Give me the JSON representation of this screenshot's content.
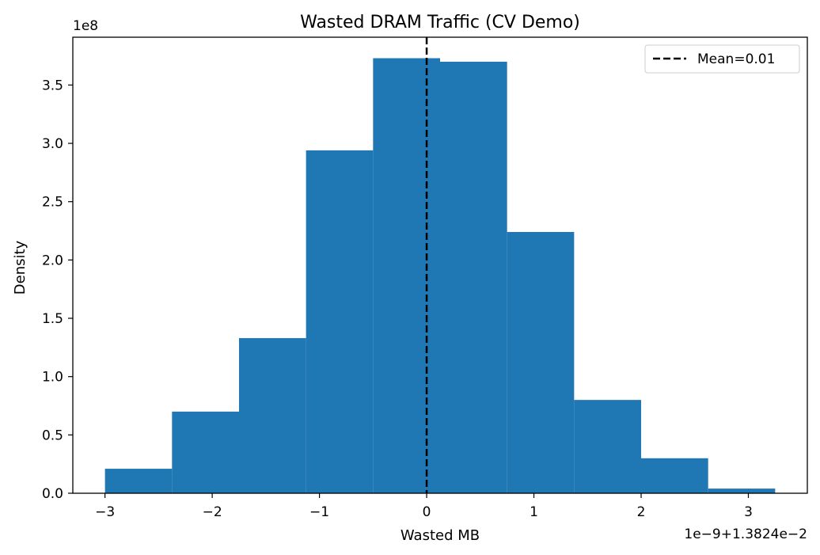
{
  "chart_data": {
    "type": "bar",
    "title": "Wasted DRAM Traffic (CV Demo)",
    "xlabel": "Wasted MB",
    "ylabel": "Density",
    "y_multiplier_label": "1e8",
    "x_offset_label": "1e−9+1.3824e−2",
    "xlim": [
      -3.3,
      3.55
    ],
    "ylim": [
      0,
      3.91
    ],
    "bins": [
      {
        "x0": -3.0,
        "x1": -2.375,
        "value": 0.21
      },
      {
        "x0": -2.375,
        "x1": -1.75,
        "value": 0.7
      },
      {
        "x0": -1.75,
        "x1": -1.125,
        "value": 1.33
      },
      {
        "x0": -1.125,
        "x1": -0.5,
        "value": 2.94
      },
      {
        "x0": -0.5,
        "x1": 0.125,
        "value": 3.73
      },
      {
        "x0": 0.125,
        "x1": 0.75,
        "value": 3.7
      },
      {
        "x0": 0.75,
        "x1": 1.375,
        "value": 2.24
      },
      {
        "x0": 1.375,
        "x1": 2.0,
        "value": 0.8
      },
      {
        "x0": 2.0,
        "x1": 2.625,
        "value": 0.3
      },
      {
        "x0": 2.625,
        "x1": 3.25,
        "value": 0.04
      }
    ],
    "bar_color": "#1f77b4",
    "mean_line": {
      "x": 0.0,
      "label": "Mean=0.01",
      "color": "#000000",
      "style": "dashed"
    },
    "x_ticks": [
      {
        "value": -3,
        "label": "−3"
      },
      {
        "value": -2,
        "label": "−2"
      },
      {
        "value": -1,
        "label": "−1"
      },
      {
        "value": 0,
        "label": "0"
      },
      {
        "value": 1,
        "label": "1"
      },
      {
        "value": 2,
        "label": "2"
      },
      {
        "value": 3,
        "label": "3"
      }
    ],
    "y_ticks": [
      {
        "value": 0.0,
        "label": "0.0"
      },
      {
        "value": 0.5,
        "label": "0.5"
      },
      {
        "value": 1.0,
        "label": "1.0"
      },
      {
        "value": 1.5,
        "label": "1.5"
      },
      {
        "value": 2.0,
        "label": "2.0"
      },
      {
        "value": 2.5,
        "label": "2.5"
      },
      {
        "value": 3.0,
        "label": "3.0"
      },
      {
        "value": 3.5,
        "label": "3.5"
      }
    ],
    "legend": {
      "position": "top-right",
      "entries": [
        "Mean=0.01"
      ]
    },
    "grid": false
  }
}
